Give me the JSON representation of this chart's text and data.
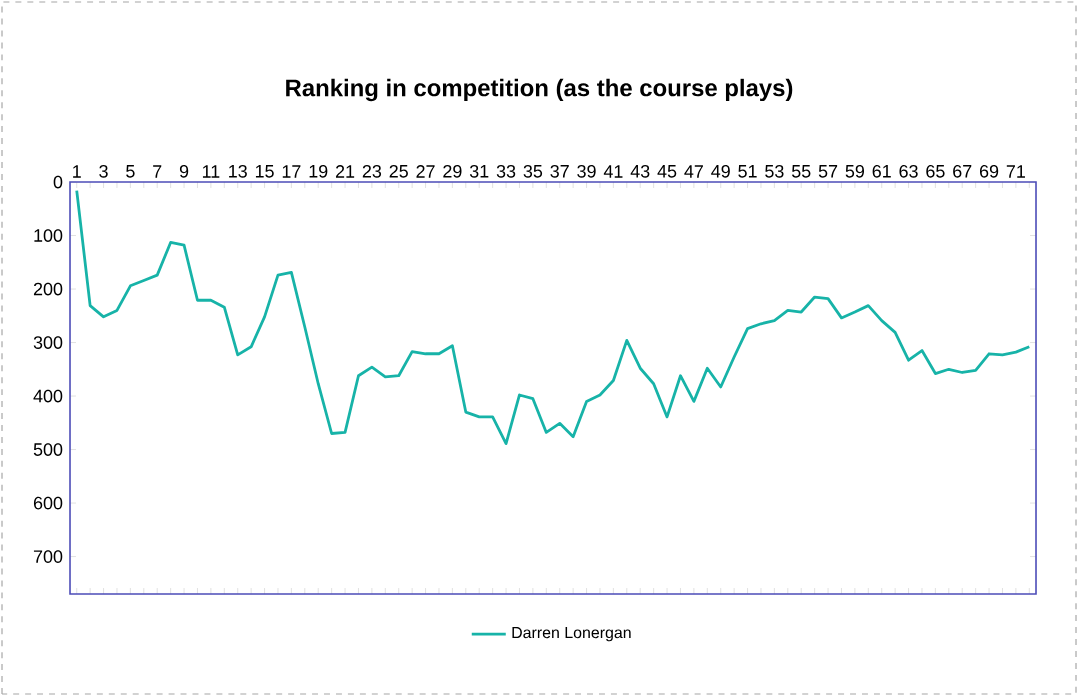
{
  "chart_data": {
    "type": "line",
    "title": "Ranking in competition (as the course plays)",
    "categories": [
      "1",
      null,
      "3",
      null,
      "5",
      null,
      "7",
      null,
      "9",
      null,
      "11",
      null,
      "13",
      null,
      "15",
      null,
      "17",
      null,
      "19",
      null,
      "21",
      null,
      "23",
      null,
      "25",
      null,
      "27",
      null,
      "29",
      null,
      "31",
      null,
      "33",
      null,
      "35",
      null,
      "37",
      null,
      "39",
      null,
      "41",
      null,
      "43",
      null,
      "45",
      null,
      "47",
      null,
      "49",
      null,
      "51",
      null,
      "53",
      null,
      "55",
      null,
      "57",
      null,
      "59",
      null,
      "61",
      null,
      "63",
      null,
      "65",
      null,
      "67",
      null,
      "69",
      null,
      "71",
      null
    ],
    "series": [
      {
        "name": "Darren Lonergan",
        "color": "#17b3a8",
        "values": [
          16,
          231,
          252,
          240,
          194,
          184,
          174,
          113,
          118,
          221,
          221,
          234,
          323,
          308,
          252,
          174,
          169,
          271,
          377,
          470,
          468,
          362,
          346,
          364,
          362,
          317,
          321,
          321,
          306,
          430,
          439,
          439,
          489,
          398,
          405,
          468,
          451,
          476,
          410,
          398,
          371,
          296,
          348,
          377,
          439,
          362,
          410,
          348,
          383,
          327,
          274,
          265,
          259,
          240,
          243,
          215,
          218,
          254,
          243,
          231,
          259,
          281,
          333,
          315,
          358,
          350,
          356,
          352,
          321,
          323,
          318,
          308
        ]
      }
    ],
    "ylim": [
      770,
      0
    ],
    "yticks": [
      0,
      100,
      200,
      300,
      400,
      500,
      600,
      700
    ],
    "grid": false,
    "legend": "bottom",
    "marker": "none",
    "line_style": "solid"
  }
}
